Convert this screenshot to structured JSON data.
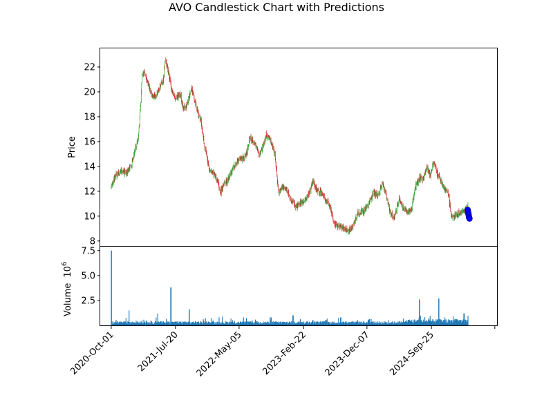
{
  "chart_data": [
    {
      "panel": "price",
      "type": "candlestick",
      "title": "AVO Candlestick Chart with Predictions",
      "ylabel": "Price",
      "xlabel": "",
      "ylim": [
        7.6,
        23.5
      ],
      "xlim": [
        "2020-08-12",
        "2025-07-20"
      ],
      "yticks": [
        8,
        10,
        12,
        14,
        16,
        18,
        20,
        22
      ],
      "ytick_labels": [
        "8",
        "10",
        "12",
        "14",
        "16",
        "18",
        "20",
        "22"
      ],
      "grid": false,
      "up_color": "#2ca02c",
      "down_color": "#d62728",
      "prediction_color": "#0000ff",
      "price_path": [
        [
          "2020-10-01",
          12.4
        ],
        [
          "2020-10-20",
          13.3
        ],
        [
          "2020-11-15",
          13.6
        ],
        [
          "2020-12-10",
          13.5
        ],
        [
          "2021-01-01",
          14.1
        ],
        [
          "2021-01-20",
          15.5
        ],
        [
          "2021-02-01",
          16.2
        ],
        [
          "2021-02-10",
          18.5
        ],
        [
          "2021-02-18",
          21.2
        ],
        [
          "2021-03-01",
          21.6
        ],
        [
          "2021-03-15",
          20.8
        ],
        [
          "2021-04-01",
          19.9
        ],
        [
          "2021-04-20",
          19.6
        ],
        [
          "2021-05-10",
          20.4
        ],
        [
          "2021-05-25",
          21.0
        ],
        [
          "2021-06-05",
          22.6
        ],
        [
          "2021-06-20",
          21.4
        ],
        [
          "2021-07-05",
          20.0
        ],
        [
          "2021-07-20",
          19.5
        ],
        [
          "2021-08-10",
          19.8
        ],
        [
          "2021-08-25",
          18.6
        ],
        [
          "2021-09-10",
          18.9
        ],
        [
          "2021-10-01",
          20.3
        ],
        [
          "2021-10-20",
          19.0
        ],
        [
          "2021-11-10",
          17.8
        ],
        [
          "2021-12-01",
          15.5
        ],
        [
          "2021-12-20",
          13.8
        ],
        [
          "2022-01-10",
          13.4
        ],
        [
          "2022-01-25",
          12.9
        ],
        [
          "2022-02-10",
          11.9
        ],
        [
          "2022-02-25",
          12.6
        ],
        [
          "2022-03-15",
          12.9
        ],
        [
          "2022-04-05",
          13.8
        ],
        [
          "2022-04-25",
          14.3
        ],
        [
          "2022-05-15",
          14.6
        ],
        [
          "2022-06-05",
          14.8
        ],
        [
          "2022-06-25",
          16.3
        ],
        [
          "2022-07-15",
          15.9
        ],
        [
          "2022-08-05",
          14.9
        ],
        [
          "2022-08-20",
          15.6
        ],
        [
          "2022-09-05",
          16.5
        ],
        [
          "2022-09-25",
          16.1
        ],
        [
          "2022-10-15",
          14.9
        ],
        [
          "2022-11-01",
          11.9
        ],
        [
          "2022-11-20",
          12.4
        ],
        [
          "2022-12-10",
          12.0
        ],
        [
          "2023-01-01",
          11.2
        ],
        [
          "2023-01-20",
          10.7
        ],
        [
          "2023-02-10",
          11.1
        ],
        [
          "2023-03-01",
          11.3
        ],
        [
          "2023-03-20",
          11.8
        ],
        [
          "2023-04-05",
          12.8
        ],
        [
          "2023-04-25",
          12.0
        ],
        [
          "2023-05-15",
          11.9
        ],
        [
          "2023-06-05",
          11.2
        ],
        [
          "2023-06-25",
          10.7
        ],
        [
          "2023-07-10",
          9.4
        ],
        [
          "2023-08-01",
          9.2
        ],
        [
          "2023-08-25",
          9.0
        ],
        [
          "2023-09-15",
          8.8
        ],
        [
          "2023-10-05",
          9.2
        ],
        [
          "2023-10-25",
          10.2
        ],
        [
          "2023-11-20",
          10.4
        ],
        [
          "2023-12-10",
          10.8
        ],
        [
          "2024-01-05",
          11.9
        ],
        [
          "2024-01-25",
          11.7
        ],
        [
          "2024-02-15",
          12.6
        ],
        [
          "2024-03-01",
          11.8
        ],
        [
          "2024-03-20",
          10.3
        ],
        [
          "2024-04-10",
          9.9
        ],
        [
          "2024-05-01",
          11.4
        ],
        [
          "2024-05-15",
          10.8
        ],
        [
          "2024-06-05",
          10.3
        ],
        [
          "2024-06-25",
          10.5
        ],
        [
          "2024-07-15",
          12.4
        ],
        [
          "2024-08-01",
          13.1
        ],
        [
          "2024-08-20",
          13.0
        ],
        [
          "2024-09-05",
          13.9
        ],
        [
          "2024-09-20",
          13.3
        ],
        [
          "2024-10-05",
          14.4
        ],
        [
          "2024-10-20",
          13.5
        ],
        [
          "2024-11-05",
          12.9
        ],
        [
          "2024-11-25",
          12.1
        ],
        [
          "2024-12-10",
          11.9
        ],
        [
          "2024-12-25",
          9.9
        ],
        [
          "2025-01-15",
          10.1
        ],
        [
          "2025-02-05",
          10.3
        ],
        [
          "2025-02-25",
          10.5
        ],
        [
          "2025-03-10",
          10.8
        ]
      ],
      "predictions": [
        [
          "2025-03-09",
          10.5
        ],
        [
          "2025-03-10",
          10.4
        ],
        [
          "2025-03-11",
          10.3
        ],
        [
          "2025-03-12",
          10.2
        ],
        [
          "2025-03-13",
          10.1
        ],
        [
          "2025-03-14",
          10.0
        ],
        [
          "2025-03-15",
          9.9
        ],
        [
          "2025-03-16",
          9.85
        ],
        [
          "2025-03-17",
          9.8
        ]
      ]
    },
    {
      "panel": "volume",
      "type": "bar",
      "ylabel": "Volume",
      "scale_label": "10",
      "scale_exponent": "6",
      "ylim": [
        0,
        7.9
      ],
      "yticks": [
        2.5,
        5.0,
        7.5
      ],
      "ytick_labels": [
        "2.5",
        "5.0",
        "7.5"
      ],
      "bar_color": "#1f77b4",
      "base_level": 0.35,
      "spikes": [
        [
          "2020-10-01",
          7.5
        ],
        [
          "2020-12-20",
          1.5
        ],
        [
          "2021-05-01",
          1.2
        ],
        [
          "2021-06-29",
          3.8
        ],
        [
          "2021-09-20",
          1.6
        ],
        [
          "2023-01-05",
          1.0
        ],
        [
          "2023-08-10",
          0.8
        ],
        [
          "2024-08-02",
          2.6
        ],
        [
          "2024-10-28",
          2.7
        ],
        [
          "2025-02-20",
          1.2
        ]
      ]
    }
  ],
  "x_axis": {
    "tick_labels": [
      "2020-Oct-01",
      "2021-Jul-20",
      "2022-May-05",
      "2023-Feb-22",
      "2023-Dec-07",
      "2024-Sep-25",
      ""
    ],
    "tick_dates": [
      "2020-10-01",
      "2021-07-20",
      "2022-05-05",
      "2023-02-22",
      "2023-12-07",
      "2024-09-25",
      "2025-07-10"
    ]
  }
}
